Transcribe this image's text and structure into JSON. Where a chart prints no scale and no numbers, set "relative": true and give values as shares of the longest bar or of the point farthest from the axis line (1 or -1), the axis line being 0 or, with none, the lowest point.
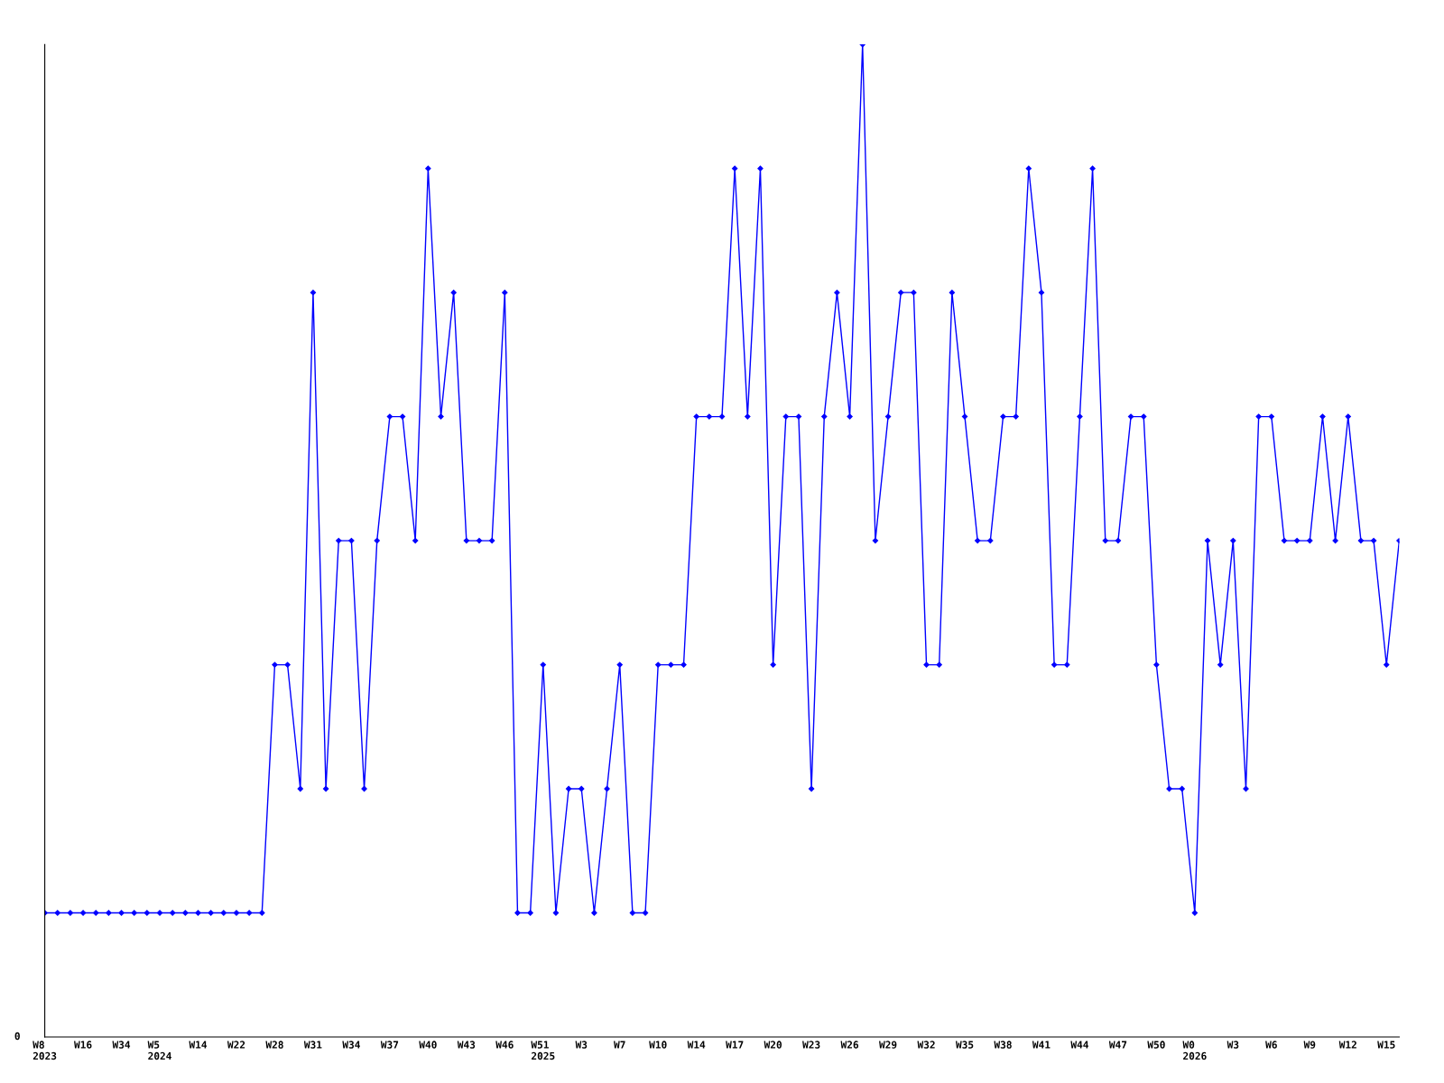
{
  "chart_data": {
    "type": "line",
    "relative": true,
    "annotations": [
      "0"
    ],
    "color": "#0000ff",
    "marker": "diamond",
    "line_style": "solid",
    "grid": false,
    "legend": false,
    "categories": [
      "W8\n2023",
      null,
      null,
      "W16",
      null,
      null,
      "W34",
      null,
      null,
      "W5\n2024",
      null,
      null,
      "W14",
      null,
      null,
      "W22",
      null,
      null,
      "W28",
      null,
      null,
      "W31",
      null,
      null,
      "W34",
      null,
      null,
      "W37",
      null,
      null,
      "W40",
      null,
      null,
      "W43",
      null,
      null,
      "W46",
      null,
      null,
      "W51\n2025",
      null,
      null,
      "W3",
      null,
      null,
      "W7",
      null,
      null,
      "W10",
      null,
      null,
      "W14",
      null,
      null,
      "W17",
      null,
      null,
      "W20",
      null,
      null,
      "W23",
      null,
      null,
      "W26",
      null,
      null,
      "W29",
      null,
      null,
      "W32",
      null,
      null,
      "W35",
      null,
      null,
      "W38",
      null,
      null,
      "W41",
      null,
      null,
      "W44",
      null,
      null,
      "W47",
      null,
      null,
      "W50",
      null,
      null,
      "W0\n2026",
      null,
      null,
      "W3",
      null,
      null,
      "W6",
      null,
      null,
      "W9",
      null,
      null,
      "W12",
      null,
      null,
      "W15",
      null
    ],
    "values": [
      0.125,
      0.125,
      0.125,
      0.125,
      0.125,
      0.125,
      0.125,
      0.125,
      0.125,
      0.125,
      0.125,
      0.125,
      0.125,
      0.125,
      0.125,
      0.125,
      0.125,
      0.125,
      0.375,
      0.375,
      0.25,
      0.75,
      0.25,
      0.5,
      0.5,
      0.25,
      0.5,
      0.625,
      0.625,
      0.5,
      0.875,
      0.625,
      0.75,
      0.5,
      0.5,
      0.5,
      0.75,
      0.125,
      0.125,
      0.375,
      0.125,
      0.25,
      0.25,
      0.125,
      0.25,
      0.375,
      0.125,
      0.125,
      0.375,
      0.375,
      0.375,
      0.625,
      0.625,
      0.625,
      0.875,
      0.625,
      0.875,
      0.375,
      0.625,
      0.625,
      0.25,
      0.625,
      0.75,
      0.625,
      1,
      0.5,
      0.625,
      0.75,
      0.75,
      0.375,
      0.375,
      0.75,
      0.625,
      0.5,
      0.5,
      0.625,
      0.625,
      0.875,
      0.75,
      0.375,
      0.375,
      0.625,
      0.875,
      0.5,
      0.5,
      0.625,
      0.625,
      0.375,
      0.25,
      0.25,
      0.125,
      0.5,
      0.375,
      0.5,
      0.25,
      0.625,
      0.625,
      0.5,
      0.5,
      0.5,
      0.625,
      0.5,
      0.625,
      0.5,
      0.5,
      0.375,
      0.5
    ]
  }
}
